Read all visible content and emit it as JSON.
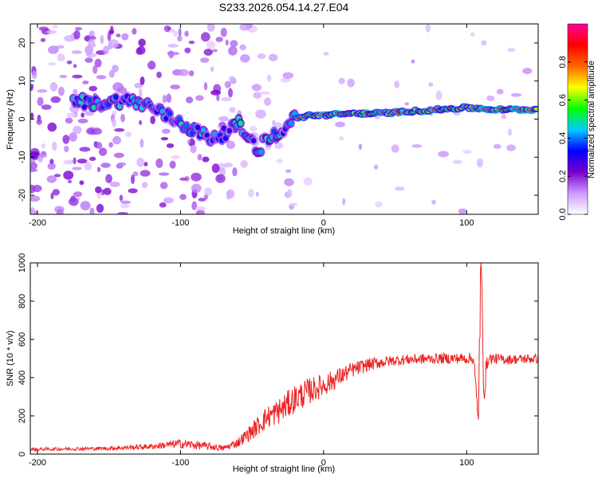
{
  "title": "S233.2026.054.14.27.E04",
  "chart_data": [
    {
      "type": "heatmap",
      "xlabel": "Height of straight line (km)",
      "ylabel": "Frequency (Hz)",
      "xlim": [
        -205,
        150
      ],
      "ylim": [
        -25,
        25
      ],
      "xticks": [
        -200,
        -100,
        0,
        100
      ],
      "yticks": [
        20,
        10,
        0,
        -10,
        -20
      ],
      "colorbar": {
        "label": "Normalized spectral amplitude",
        "ticks": [
          0.0,
          0.2,
          0.4,
          0.6,
          0.8
        ],
        "range": [
          0,
          1
        ],
        "colors": [
          "#ffffff",
          "#cc99ff",
          "#7700cc",
          "#0000ff",
          "#00ccff",
          "#00ff00",
          "#ffff00",
          "#ff6600",
          "#ff0000",
          "#ff0099"
        ]
      },
      "ridge": {
        "x": [
          -175,
          -160,
          -140,
          -125,
          -110,
          -95,
          -80,
          -70,
          -60,
          -50,
          -45,
          -40,
          -35,
          -30,
          -25,
          -20,
          -10,
          0,
          20,
          40,
          60,
          80,
          100,
          120,
          150
        ],
        "y": [
          5,
          4,
          5,
          4,
          1,
          -2,
          -5,
          -4,
          -1,
          -6,
          -8,
          -5,
          -4,
          -5,
          0,
          0,
          1,
          1,
          1.5,
          1.5,
          2,
          2.5,
          3,
          2.5,
          2.5
        ]
      }
    },
    {
      "type": "line",
      "xlabel": "Height of straight line (km)",
      "ylabel": "SNR (10 * v/v)",
      "xlim": [
        -205,
        150
      ],
      "ylim": [
        0,
        1000
      ],
      "xticks": [
        -200,
        -100,
        0,
        100
      ],
      "yticks": [
        0,
        200,
        400,
        600,
        800,
        1000
      ],
      "series": [
        {
          "name": "SNR",
          "color": "#ee2222",
          "trend_x": [
            -205,
            -150,
            -120,
            -100,
            -80,
            -70,
            -60,
            -50,
            -40,
            -30,
            -20,
            -10,
            0,
            10,
            20,
            30,
            40,
            50,
            60,
            80,
            100,
            105,
            108,
            110,
            112,
            115,
            130,
            150
          ],
          "trend_y": [
            25,
            30,
            40,
            55,
            40,
            30,
            60,
            120,
            190,
            230,
            290,
            330,
            360,
            400,
            440,
            465,
            480,
            490,
            495,
            500,
            500,
            500,
            150,
            1000,
            350,
            500,
            495,
            500
          ],
          "noise": [
            8,
            10,
            15,
            25,
            20,
            15,
            25,
            45,
            60,
            70,
            75,
            70,
            60,
            50,
            40,
            35,
            30,
            28,
            28,
            28,
            28,
            30,
            100,
            150,
            100,
            30,
            25,
            25
          ]
        }
      ]
    }
  ]
}
